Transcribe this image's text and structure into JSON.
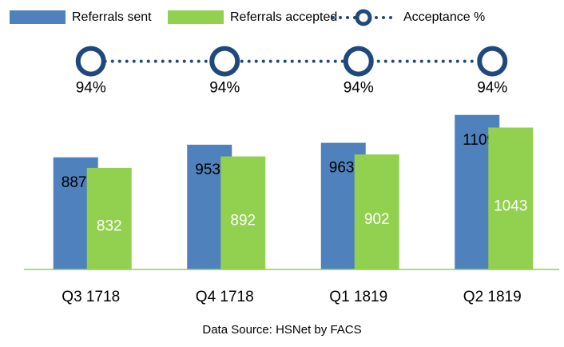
{
  "chart_data": {
    "type": "bar",
    "categories": [
      "Q3 1718",
      "Q4 1718",
      "Q1 1819",
      "Q2 1819"
    ],
    "series": [
      {
        "name": "Referrals sent",
        "color": "#4f81bd",
        "values": [
          887,
          953,
          963,
          1109
        ]
      },
      {
        "name": "Referrals accepted",
        "color": "#92d050",
        "values": [
          832,
          892,
          902,
          1043
        ]
      },
      {
        "name": "Acceptance %",
        "color": "#1f497d",
        "type": "line",
        "axis": "y2",
        "values": [
          94,
          94,
          94,
          94
        ],
        "value_labels": [
          "94%",
          "94%",
          "94%",
          "94%"
        ]
      }
    ],
    "ylim": [
      300,
      1200
    ],
    "y2lim": [
      0,
      100
    ],
    "legend": "top",
    "footnote": "Data Source: HSNet by FACS"
  }
}
